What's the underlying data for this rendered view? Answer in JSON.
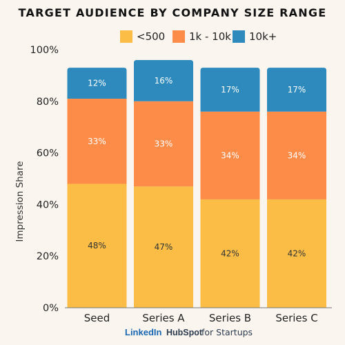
{
  "chart_data": {
    "type": "bar",
    "stacked": true,
    "title": "TARGET AUDIENCE BY COMPANY SIZE RANGE",
    "ylabel": "Impression Share",
    "xlabel": "",
    "ylim": [
      0,
      100
    ],
    "yticks": [
      "0%",
      "20%",
      "40%",
      "60%",
      "80%",
      "100%"
    ],
    "legend_position": "top-right",
    "grid": false,
    "categories": [
      "Seed",
      "Series A",
      "Series B",
      "Series C"
    ],
    "series": [
      {
        "name": "<500",
        "color": "#fcbd47",
        "text_color": "#333333",
        "values": [
          48,
          47,
          42,
          42
        ],
        "labels": [
          "48%",
          "47%",
          "42%",
          "42%"
        ]
      },
      {
        "name": "1k - 10k",
        "color": "#fe8c49",
        "text_color": "#ffffff",
        "values": [
          33,
          33,
          34,
          34
        ],
        "labels": [
          "33%",
          "33%",
          "34%",
          "34%"
        ]
      },
      {
        "name": "10k+",
        "color": "#2e8abd",
        "text_color": "#ffffff",
        "values": [
          12,
          16,
          17,
          17
        ],
        "labels": [
          "12%",
          "16%",
          "17%",
          "17%"
        ]
      }
    ]
  },
  "footer": {
    "linkedin": "LinkedIn",
    "hubspot": "HubSpot",
    "for_startups": "for Startups"
  }
}
